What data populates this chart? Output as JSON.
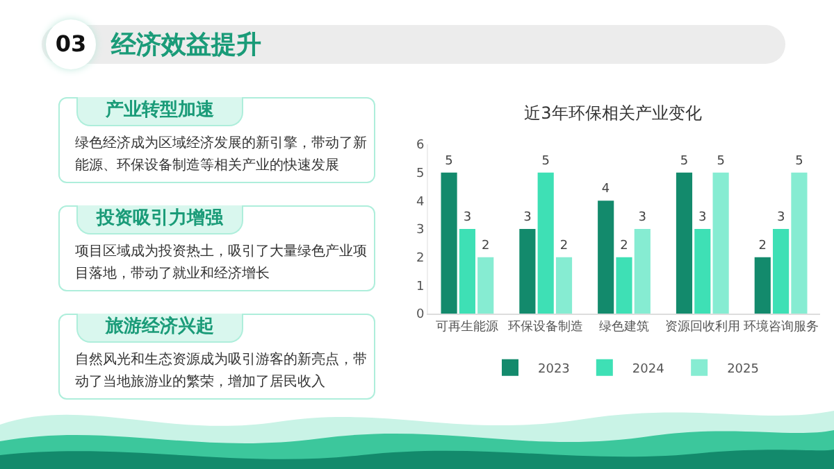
{
  "chart_data": [
    {
      "type": "other",
      "title": "经济效益提升",
      "annotations": [
        "03",
        "产业转型加速",
        "绿色经济成为区域经济发展的新引擎，带动了新能源、环保设备制造等相关产业的快速发展",
        "投资吸引力增强",
        "项目区域成为投资热土，吸引了大量绿色产业项目落地，带动了就业和经济增长",
        "旅游经济兴起",
        "自然风光和生态资源成为吸引游客的新亮点，带动了当地旅游业的繁荣，增加了居民收入"
      ]
    },
    {
      "type": "bar",
      "title": "近3年环保相关产业变化",
      "categories": [
        "可再生能源",
        "环保设备制造",
        "绿色建筑",
        "资源回收利用",
        "环境咨询服务"
      ],
      "series": [
        {
          "name": "2023",
          "color": "#138a6c",
          "values": [
            5,
            3,
            4,
            5,
            2
          ]
        },
        {
          "name": "2024",
          "color": "#3ee0b5",
          "values": [
            3,
            5,
            2,
            3,
            3
          ]
        },
        {
          "name": "2025",
          "color": "#86ecd2",
          "values": [
            2,
            2,
            3,
            5,
            5
          ]
        }
      ],
      "ylim": [
        0,
        6
      ],
      "yticks": [
        0,
        1,
        2,
        3,
        4,
        5,
        6
      ],
      "grid": false,
      "legend": "bottom",
      "data_labels": true
    }
  ]
}
